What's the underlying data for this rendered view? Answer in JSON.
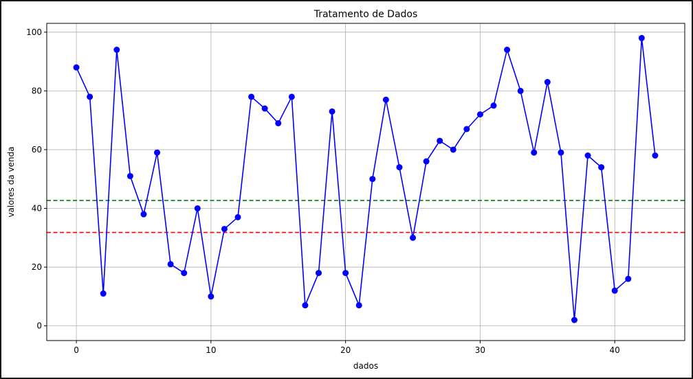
{
  "chart_data": {
    "type": "line",
    "title": "Tratamento de Dados",
    "xlabel": "dados",
    "ylabel": "valores da venda",
    "xlim": [
      -2.2,
      45.2
    ],
    "ylim": [
      -5,
      103
    ],
    "xticks": [
      0,
      10,
      20,
      30,
      40
    ],
    "yticks": [
      0,
      20,
      40,
      60,
      80,
      100
    ],
    "grid": true,
    "series": [
      {
        "color": "#0000ff",
        "marker": "circle",
        "x": [
          0,
          1,
          2,
          3,
          4,
          5,
          6,
          7,
          8,
          9,
          10,
          11,
          12,
          13,
          14,
          15,
          16,
          17,
          18,
          19,
          20,
          21,
          22,
          23,
          24,
          25,
          26,
          27,
          28,
          29,
          30,
          31,
          32,
          33,
          34,
          35,
          36,
          37,
          38,
          39,
          40,
          41,
          42,
          43
        ],
        "y": [
          88,
          78,
          11,
          94,
          51,
          38,
          59,
          21,
          18,
          40,
          10,
          33,
          37,
          78,
          74,
          69,
          78,
          7,
          18,
          73,
          18,
          7,
          50,
          77,
          54,
          30,
          56,
          63,
          60,
          67,
          72,
          75,
          94,
          80,
          59,
          83,
          59,
          2,
          58,
          54,
          12,
          16,
          98,
          58
        ]
      }
    ],
    "hlines": [
      {
        "y": 42.7,
        "color": "#008000",
        "style": "dashed"
      },
      {
        "y": 31.8,
        "color": "#ff0000",
        "style": "dashed"
      }
    ]
  }
}
